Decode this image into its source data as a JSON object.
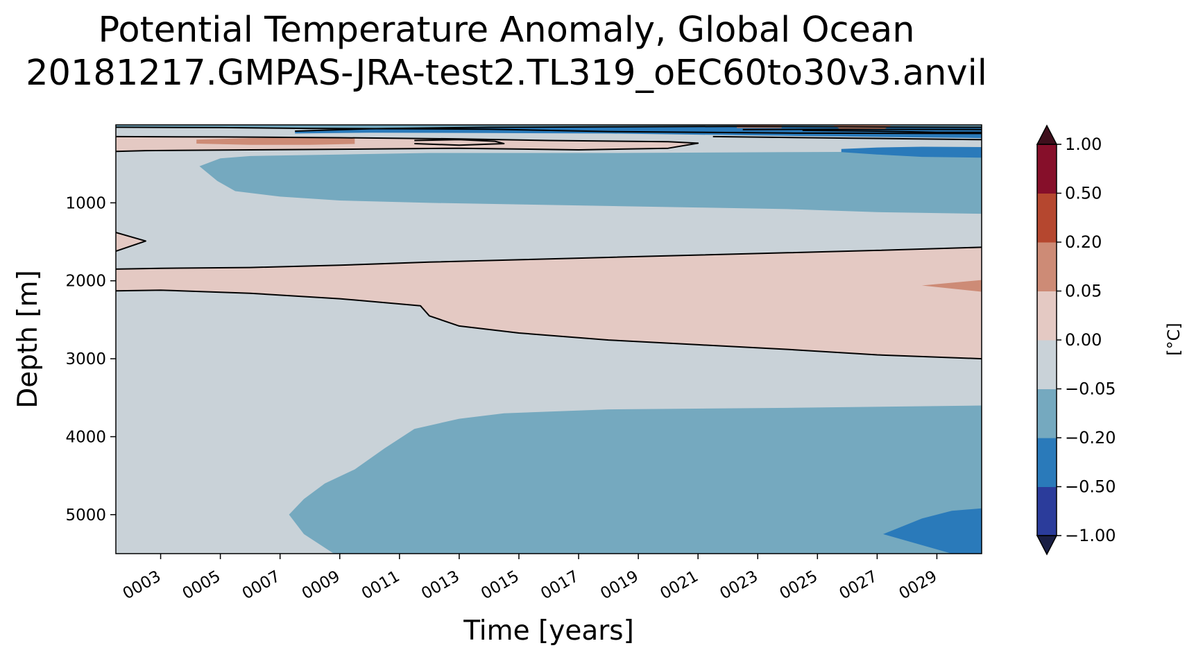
{
  "chart_data": {
    "type": "contourf",
    "title_line1": "Potential Temperature Anomaly, Global Ocean",
    "title_line2": "20181217.GMPAS-JRA-test2.TL319_oEC60to30v3.anvil",
    "xlabel": "Time [years]",
    "ylabel": "Depth [m]",
    "xlim": [
      1.5,
      30.5
    ],
    "ylim": [
      5500,
      0
    ],
    "x_tick_values": [
      3,
      5,
      7,
      9,
      11,
      13,
      15,
      17,
      19,
      21,
      23,
      25,
      27,
      29
    ],
    "x_tick_labels": [
      "0003",
      "0005",
      "0007",
      "0009",
      "0011",
      "0013",
      "0015",
      "0017",
      "0019",
      "0021",
      "0023",
      "0025",
      "0027",
      "0029"
    ],
    "y_tick_values": [
      1000,
      2000,
      3000,
      4000,
      5000
    ],
    "y_tick_labels": [
      "1000",
      "2000",
      "3000",
      "4000",
      "5000"
    ],
    "colorbar": {
      "label": "[°C]",
      "extend": "both",
      "levels": [
        -1.0,
        -0.5,
        -0.2,
        -0.05,
        0.0,
        0.05,
        0.2,
        0.5,
        1.0
      ],
      "level_labels": [
        "−1.00",
        "−0.50",
        "−0.20",
        "−0.05",
        "0.00",
        "0.05",
        "0.20",
        "0.50",
        "1.00"
      ],
      "colors": [
        "#2b3c9b",
        "#2a7aba",
        "#75a9bf",
        "#c9d2d8",
        "#e4c9c3",
        "#cd8b76",
        "#b5472f",
        "#860f2a"
      ],
      "under_color": "#1a1f45",
      "over_color": "#3f0f1c"
    },
    "regions": [
      {
        "level_range": [
          -0.05,
          0.0
        ],
        "color": "#c9d2d8",
        "boundary": [
          [
            1.5,
            0
          ],
          [
            30.5,
            0
          ],
          [
            30.5,
            5500
          ],
          [
            1.5,
            5500
          ]
        ]
      },
      {
        "level_range": [
          0.0,
          0.05
        ],
        "color": "#e4c9c3",
        "boundary": [
          [
            1.5,
            1850
          ],
          [
            3,
            1840
          ],
          [
            6,
            1830
          ],
          [
            9,
            1800
          ],
          [
            12,
            1760
          ],
          [
            15,
            1730
          ],
          [
            18,
            1700
          ],
          [
            21,
            1670
          ],
          [
            24,
            1640
          ],
          [
            27,
            1610
          ],
          [
            30.5,
            1570
          ],
          [
            30.5,
            3000
          ],
          [
            27,
            2950
          ],
          [
            24,
            2880
          ],
          [
            21,
            2820
          ],
          [
            18,
            2760
          ],
          [
            15,
            2670
          ],
          [
            13,
            2580
          ],
          [
            12,
            2450
          ],
          [
            11.7,
            2320
          ],
          [
            9,
            2230
          ],
          [
            6,
            2160
          ],
          [
            3,
            2120
          ],
          [
            1.5,
            2130
          ]
        ]
      },
      {
        "level_range": [
          0.0,
          0.05
        ],
        "color": "#e4c9c3",
        "boundary": [
          [
            1.5,
            1380
          ],
          [
            2.5,
            1490
          ],
          [
            1.5,
            1620
          ]
        ]
      },
      {
        "level_range": [
          -0.2,
          -0.05
        ],
        "color": "#75a9bf",
        "boundary": [
          [
            30.5,
            3600
          ],
          [
            24,
            3630
          ],
          [
            18,
            3650
          ],
          [
            14.5,
            3700
          ],
          [
            13,
            3770
          ],
          [
            11.5,
            3900
          ],
          [
            10.5,
            4150
          ],
          [
            9.5,
            4420
          ],
          [
            8.5,
            4600
          ],
          [
            7.8,
            4800
          ],
          [
            7.3,
            5000
          ],
          [
            7.8,
            5250
          ],
          [
            8.8,
            5500
          ],
          [
            30.5,
            5500
          ]
        ]
      },
      {
        "level_range": [
          -0.5,
          -0.2
        ],
        "color": "#2a7aba",
        "boundary": [
          [
            30.5,
            4920
          ],
          [
            29.5,
            4950
          ],
          [
            28.5,
            5050
          ],
          [
            27.2,
            5250
          ],
          [
            29.5,
            5500
          ],
          [
            30.5,
            5500
          ]
        ]
      },
      {
        "level_range": [
          -0.2,
          -0.05
        ],
        "color": "#75a9bf",
        "boundary": [
          [
            4.3,
            530
          ],
          [
            5,
            430
          ],
          [
            6,
            400
          ],
          [
            9,
            380
          ],
          [
            12,
            360
          ],
          [
            18,
            360
          ],
          [
            24,
            350
          ],
          [
            30.5,
            340
          ],
          [
            30.5,
            1140
          ],
          [
            27,
            1120
          ],
          [
            24,
            1080
          ],
          [
            21,
            1060
          ],
          [
            18,
            1040
          ],
          [
            15,
            1020
          ],
          [
            12,
            1000
          ],
          [
            9,
            970
          ],
          [
            7,
            920
          ],
          [
            5.5,
            850
          ],
          [
            4.9,
            720
          ]
        ]
      },
      {
        "level_range": [
          0.0,
          0.05
        ],
        "color": "#e4c9c3",
        "boundary": [
          [
            1.5,
            150
          ],
          [
            5,
            155
          ],
          [
            9,
            165
          ],
          [
            13,
            180
          ],
          [
            16,
            200
          ],
          [
            20,
            215
          ],
          [
            21,
            235
          ],
          [
            20,
            300
          ],
          [
            17,
            320
          ],
          [
            13,
            300
          ],
          [
            10,
            310
          ],
          [
            6,
            320
          ],
          [
            2.5,
            330
          ],
          [
            1.5,
            340
          ]
        ]
      },
      {
        "level_range": [
          0.05,
          0.2
        ],
        "color": "#cd8b76",
        "boundary": [
          [
            4.2,
            190
          ],
          [
            6,
            170
          ],
          [
            8,
            160
          ],
          [
            9.5,
            170
          ],
          [
            9.5,
            245
          ],
          [
            8,
            255
          ],
          [
            6,
            255
          ],
          [
            4.2,
            240
          ]
        ]
      },
      {
        "level_range": [
          -0.2,
          -0.05
        ],
        "color": "#75a9bf",
        "boundary": [
          [
            1.5,
            0
          ],
          [
            30.5,
            0
          ],
          [
            30.5,
            110
          ],
          [
            24,
            105
          ],
          [
            18,
            85
          ],
          [
            14,
            55
          ],
          [
            8,
            45
          ],
          [
            5,
            35
          ],
          [
            1.5,
            30
          ]
        ]
      },
      {
        "level_range": [
          -0.5,
          -0.2
        ],
        "color": "#2a7aba",
        "boundary": [
          [
            7.5,
            80
          ],
          [
            10,
            50
          ],
          [
            14,
            30
          ],
          [
            18,
            25
          ],
          [
            22,
            20
          ],
          [
            26,
            25
          ],
          [
            30.5,
            30
          ],
          [
            30.5,
            170
          ],
          [
            26,
            150
          ],
          [
            22,
            130
          ],
          [
            18,
            110
          ],
          [
            14,
            105
          ],
          [
            10,
            100
          ],
          [
            7.5,
            110
          ]
        ]
      },
      {
        "level_range": [
          -0.5,
          -0.2
        ],
        "color": "#2a7aba",
        "boundary": [
          [
            25.8,
            310
          ],
          [
            27,
            290
          ],
          [
            28.5,
            280
          ],
          [
            30.5,
            285
          ],
          [
            30.5,
            420
          ],
          [
            28.5,
            410
          ],
          [
            27,
            380
          ],
          [
            25.8,
            350
          ]
        ]
      },
      {
        "level_range": [
          0.05,
          0.2
        ],
        "color": "#cd8b76",
        "boundary": [
          [
            22.3,
            0
          ],
          [
            23.8,
            0
          ],
          [
            23.8,
            40
          ],
          [
            22.3,
            40
          ]
        ]
      },
      {
        "level_range": [
          0.05,
          0.2
        ],
        "color": "#cd8b76",
        "boundary": [
          [
            25.5,
            0
          ],
          [
            27.5,
            0
          ],
          [
            27.2,
            60
          ],
          [
            25.8,
            60
          ]
        ]
      },
      {
        "level_range": [
          0.05,
          0.2
        ],
        "color": "#cd8b76",
        "boundary": [
          [
            28.5,
            2060
          ],
          [
            30.5,
            1990
          ],
          [
            30.5,
            2140
          ]
        ]
      }
    ],
    "contour_lines": [
      {
        "level": 0.0,
        "points": [
          [
            1.5,
            1850
          ],
          [
            3,
            1840
          ],
          [
            6,
            1830
          ],
          [
            9,
            1800
          ],
          [
            12,
            1760
          ],
          [
            15,
            1730
          ],
          [
            18,
            1700
          ],
          [
            21,
            1670
          ],
          [
            24,
            1640
          ],
          [
            27,
            1610
          ],
          [
            30.5,
            1570
          ]
        ]
      },
      {
        "level": 0.0,
        "points": [
          [
            1.5,
            2130
          ],
          [
            3,
            2120
          ],
          [
            6,
            2160
          ],
          [
            9,
            2230
          ],
          [
            11.7,
            2320
          ],
          [
            12,
            2450
          ],
          [
            13,
            2580
          ],
          [
            15,
            2670
          ],
          [
            18,
            2760
          ],
          [
            21,
            2820
          ],
          [
            24,
            2880
          ],
          [
            27,
            2950
          ],
          [
            30.5,
            3000
          ]
        ]
      },
      {
        "level": 0.0,
        "points": [
          [
            1.5,
            1380
          ],
          [
            2.5,
            1490
          ],
          [
            1.5,
            1620
          ]
        ]
      },
      {
        "level": 0.0,
        "points": [
          [
            1.5,
            150
          ],
          [
            5,
            155
          ],
          [
            9,
            165
          ],
          [
            13,
            180
          ],
          [
            16,
            200
          ],
          [
            20,
            215
          ],
          [
            21,
            235
          ],
          [
            20,
            300
          ],
          [
            17,
            320
          ],
          [
            13,
            300
          ],
          [
            10,
            310
          ],
          [
            6,
            320
          ],
          [
            2.5,
            330
          ],
          [
            1.5,
            340
          ]
        ]
      },
      {
        "level": -0.05,
        "points": [
          [
            7.5,
            80
          ],
          [
            10,
            50
          ],
          [
            14,
            30
          ],
          [
            18,
            25
          ],
          [
            22,
            20
          ],
          [
            26,
            25
          ],
          [
            30.5,
            30
          ]
        ]
      },
      {
        "level": -0.05,
        "points": [
          [
            1.5,
            30
          ],
          [
            5,
            35
          ],
          [
            8,
            45
          ],
          [
            14,
            55
          ],
          [
            18,
            85
          ],
          [
            24,
            105
          ],
          [
            30.5,
            110
          ]
        ]
      },
      {
        "level": -0.05,
        "points": [
          [
            11.5,
            200
          ],
          [
            13,
            190
          ],
          [
            14.2,
            210
          ],
          [
            14.5,
            240
          ],
          [
            13,
            260
          ],
          [
            11.5,
            240
          ]
        ]
      },
      {
        "level": -0.2,
        "points": [
          [
            22.5,
            60
          ],
          [
            26,
            55
          ],
          [
            30.5,
            60
          ]
        ]
      },
      {
        "level": -0.2,
        "points": [
          [
            21.5,
            150
          ],
          [
            26,
            170
          ],
          [
            30.5,
            190
          ]
        ]
      },
      {
        "level": -0.2,
        "points": [
          [
            24.5,
            70
          ],
          [
            27,
            80
          ],
          [
            29,
            95
          ],
          [
            30.5,
            95
          ]
        ]
      }
    ]
  }
}
